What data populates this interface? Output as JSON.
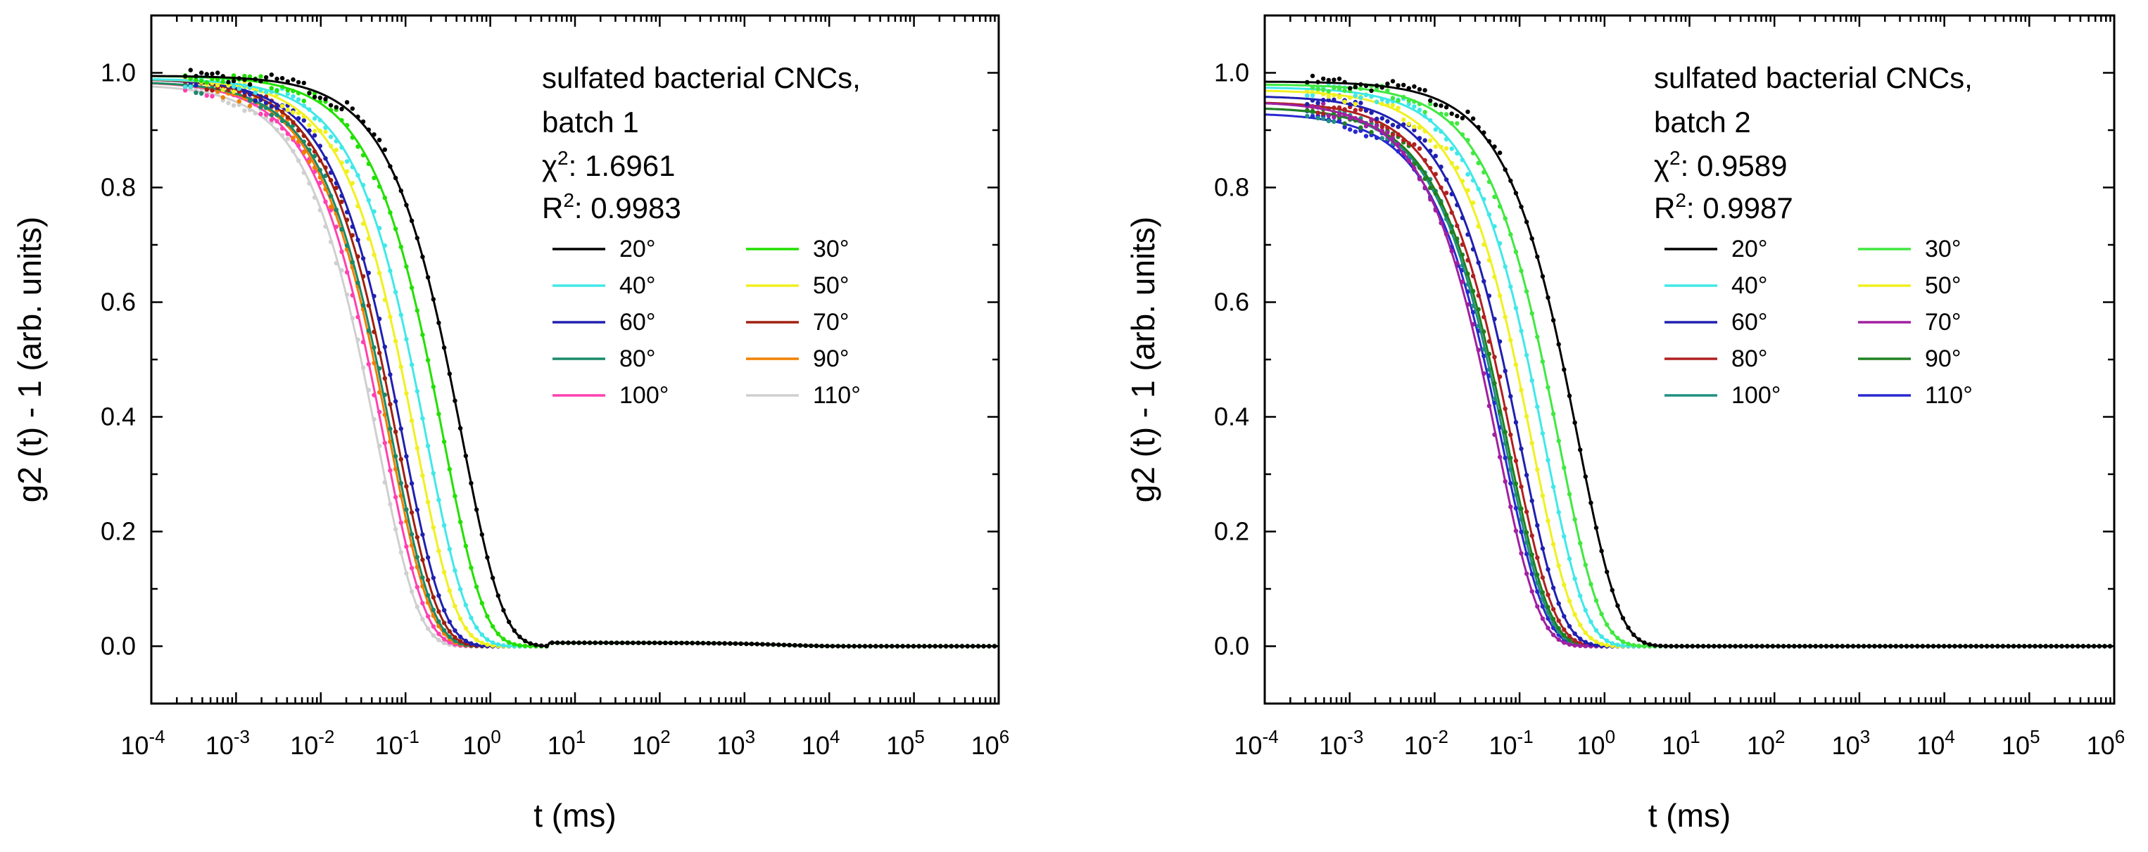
{
  "chart_data": [
    {
      "type": "scatter",
      "title": "",
      "xlabel": "t (ms)",
      "ylabel": "g2 (t) - 1 (arb. units)",
      "xscale": "log",
      "xlim": [
        0.0001,
        1000000
      ],
      "ylim": [
        -0.1,
        1.1
      ],
      "x_tick_exponents": [
        -4,
        -3,
        -2,
        -1,
        0,
        1,
        2,
        3,
        4,
        5,
        6
      ],
      "y_ticks": [
        "0.0",
        "0.2",
        "0.4",
        "0.6",
        "0.8",
        "1.0"
      ],
      "annotation": {
        "line1": "sulfated bacterial CNCs,",
        "line2": "batch 1",
        "chi_label": "χ",
        "chi_value": ": 1.6961",
        "r_label": "R",
        "r_value": ": 0.9983"
      },
      "series": [
        {
          "name": "20°",
          "color": "#000000",
          "tau_ms": 1.0,
          "baseline": 0.995
        },
        {
          "name": "30°",
          "color": "#22e000",
          "tau_ms": 0.6,
          "baseline": 0.995
        },
        {
          "name": "40°",
          "color": "#40e8e8",
          "tau_ms": 0.38,
          "baseline": 0.99
        },
        {
          "name": "50°",
          "color": "#f0f020",
          "tau_ms": 0.28,
          "baseline": 0.99
        },
        {
          "name": "60°",
          "color": "#2020b0",
          "tau_ms": 0.2,
          "baseline": 0.99
        },
        {
          "name": "70°",
          "color": "#a02010",
          "tau_ms": 0.17,
          "baseline": 0.99
        },
        {
          "name": "80°",
          "color": "#1a8a6a",
          "tau_ms": 0.15,
          "baseline": 0.985
        },
        {
          "name": "90°",
          "color": "#f08000",
          "tau_ms": 0.14,
          "baseline": 0.985
        },
        {
          "name": "100°",
          "color": "#ff40b0",
          "tau_ms": 0.12,
          "baseline": 0.985
        },
        {
          "name": "110°",
          "color": "#cfcfcf",
          "tau_ms": 0.1,
          "baseline": 0.98
        }
      ]
    },
    {
      "type": "scatter",
      "title": "",
      "xlabel": "t (ms)",
      "ylabel": "g2 (t) - 1 (arb. units)",
      "xscale": "log",
      "xlim": [
        0.0001,
        1000000
      ],
      "ylim": [
        -0.1,
        1.1
      ],
      "x_tick_exponents": [
        -4,
        -3,
        -2,
        -1,
        0,
        1,
        2,
        3,
        4,
        5,
        6
      ],
      "y_ticks": [
        "0.0",
        "0.2",
        "0.4",
        "0.6",
        "0.8",
        "1.0"
      ],
      "annotation": {
        "line1": "sulfated bacterial CNCs,",
        "line2": "batch 2",
        "chi_label": "χ",
        "chi_value": ": 0.9589",
        "r_label": "R",
        "r_value": ": 0.9987"
      },
      "series": [
        {
          "name": "20°",
          "color": "#000000",
          "tau_ms": 1.05,
          "baseline": 0.985
        },
        {
          "name": "30°",
          "color": "#40e840",
          "tau_ms": 0.62,
          "baseline": 0.98
        },
        {
          "name": "40°",
          "color": "#40e8e8",
          "tau_ms": 0.42,
          "baseline": 0.975
        },
        {
          "name": "50°",
          "color": "#f0f020",
          "tau_ms": 0.3,
          "baseline": 0.97
        },
        {
          "name": "60°",
          "color": "#2020b0",
          "tau_ms": 0.22,
          "baseline": 0.96
        },
        {
          "name": "70°",
          "color": "#a020a0",
          "tau_ms": 0.12,
          "baseline": 0.95
        },
        {
          "name": "80°",
          "color": "#b02020",
          "tau_ms": 0.18,
          "baseline": 0.95
        },
        {
          "name": "90°",
          "color": "#208020",
          "tau_ms": 0.16,
          "baseline": 0.94
        },
        {
          "name": "100°",
          "color": "#209080",
          "tau_ms": 0.15,
          "baseline": 0.94
        },
        {
          "name": "110°",
          "color": "#2828d0",
          "tau_ms": 0.14,
          "baseline": 0.93
        }
      ]
    }
  ]
}
